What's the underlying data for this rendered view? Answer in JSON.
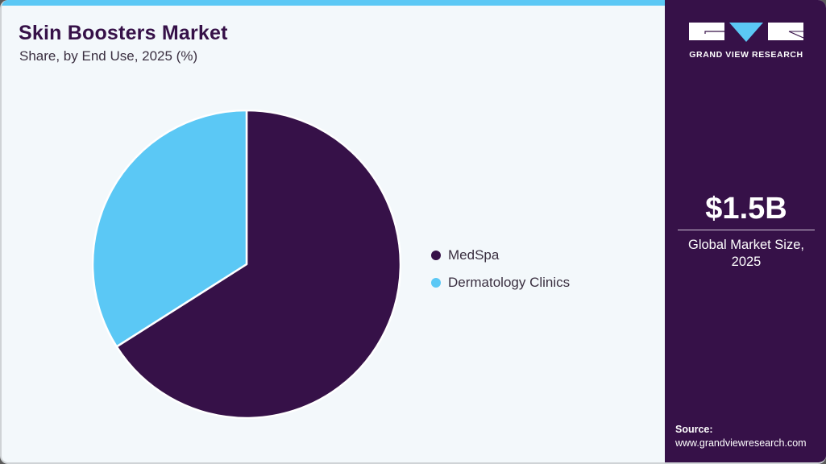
{
  "header": {
    "title": "Skin Boosters Market",
    "subtitle": "Share, by End Use, 2025 (%)"
  },
  "colors": {
    "accent": "#5bc8f5",
    "brand_dark": "#361148",
    "background": "#f3f8fb"
  },
  "legend": [
    {
      "label": "MedSpa",
      "color": "#361148"
    },
    {
      "label": "Dermatology Clinics",
      "color": "#5bc8f5"
    }
  ],
  "sidebar": {
    "logo_text": "GRAND VIEW RESEARCH",
    "market_value": "$1.5B",
    "market_label_line1": "Global Market Size,",
    "market_label_line2": "2025",
    "source_label": "Source:",
    "source_url": "www.grandviewresearch.com"
  },
  "chart_data": {
    "type": "pie",
    "title": "Skin Boosters Market",
    "subtitle": "Share, by End Use, 2025 (%)",
    "categories": [
      "MedSpa",
      "Dermatology Clinics"
    ],
    "values": [
      66,
      34
    ],
    "colors": [
      "#361148",
      "#5bc8f5"
    ],
    "start_angle_deg": 0,
    "direction": "clockwise",
    "legend_position": "right",
    "data_labels": false
  }
}
